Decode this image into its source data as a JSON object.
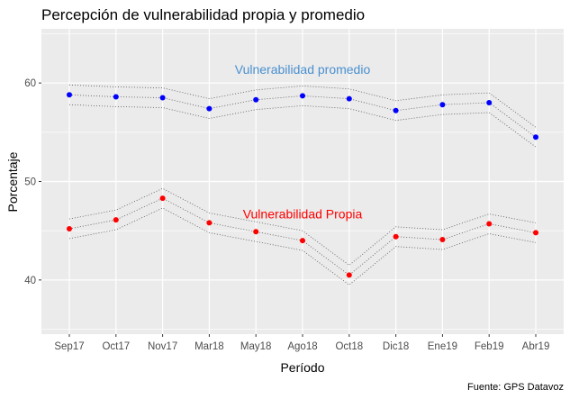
{
  "chart_data": {
    "type": "scatter",
    "title": "Percepción de vulnerabilidad propia y promedio",
    "xlabel": "Período",
    "ylabel": "Porcentaje",
    "caption": "Fuente: GPS Datavoz",
    "categories": [
      "Sep17",
      "Oct17",
      "Nov17",
      "Mar18",
      "May18",
      "Ago18",
      "Oct18",
      "Dic18",
      "Ene19",
      "Feb19",
      "Abr19"
    ],
    "ylim": [
      34.5,
      65.5
    ],
    "yticks": [
      40,
      50,
      60
    ],
    "grid": true,
    "series": [
      {
        "name": "Vulnerabilidad promedio",
        "color": "#0000ff",
        "label_color": "#4a90d0",
        "values": [
          58.8,
          58.6,
          58.5,
          57.4,
          58.3,
          58.7,
          58.4,
          57.2,
          57.8,
          58.0,
          54.5
        ],
        "upper": [
          59.8,
          59.6,
          59.5,
          58.4,
          59.3,
          59.7,
          59.4,
          58.2,
          58.8,
          59.0,
          55.5
        ],
        "lower": [
          57.8,
          57.6,
          57.5,
          56.4,
          57.3,
          57.7,
          57.4,
          56.2,
          56.8,
          57.0,
          53.5
        ]
      },
      {
        "name": "Vulnerabilidad Propia",
        "color": "#ff0000",
        "label_color": "#ff0000",
        "values": [
          45.2,
          46.1,
          48.3,
          45.8,
          44.9,
          44.0,
          40.5,
          44.4,
          44.1,
          45.7,
          44.8
        ],
        "upper": [
          46.2,
          47.1,
          49.3,
          46.8,
          45.9,
          45.0,
          41.5,
          45.4,
          45.1,
          46.7,
          45.8
        ],
        "lower": [
          44.2,
          45.1,
          47.3,
          44.8,
          43.9,
          43.0,
          39.5,
          43.4,
          43.1,
          44.7,
          43.8
        ]
      }
    ]
  }
}
